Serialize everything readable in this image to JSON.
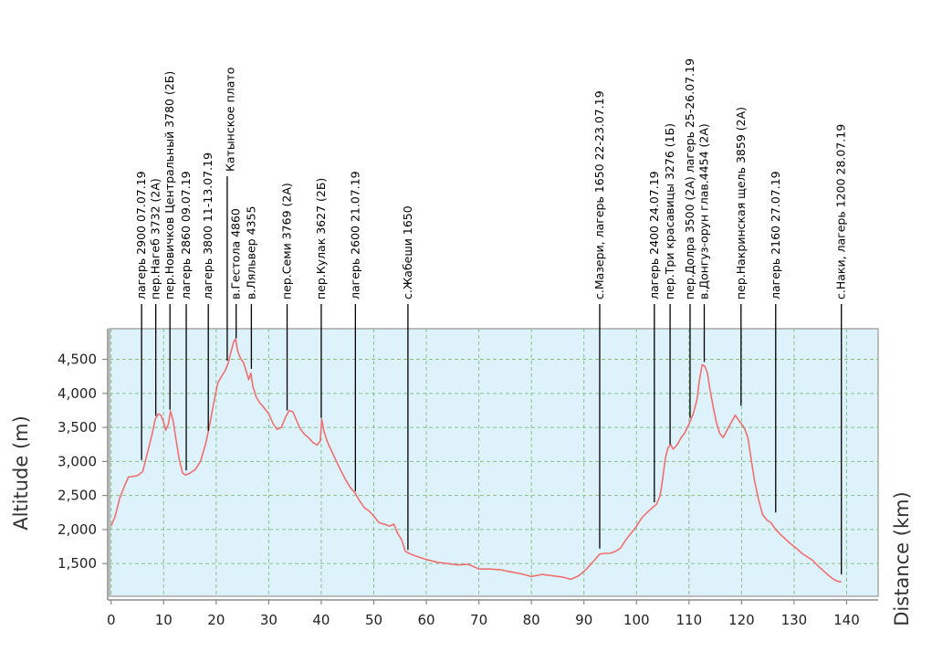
{
  "chart_data": {
    "type": "line",
    "title": "",
    "xlabel": "Distance (km)",
    "ylabel": "Altitude (m)",
    "xlim": [
      -0.3,
      146
    ],
    "ylim": [
      1020,
      4950
    ],
    "x_ticks": [
      0,
      10,
      20,
      30,
      40,
      50,
      60,
      70,
      80,
      90,
      100,
      110,
      120,
      130,
      140
    ],
    "y_ticks": [
      1500,
      2000,
      2500,
      3000,
      3500,
      4000,
      4500
    ],
    "y_tick_labels": [
      "1,500",
      "2,000",
      "2,500",
      "3,000",
      "3,500",
      "4,000",
      "4,500"
    ],
    "grid": true,
    "colors": {
      "line": "#f07070",
      "plot_bg": "#ddf2fb",
      "grid": "#88c288",
      "frame": "#a8a8a8"
    },
    "series": [
      {
        "x": [
          0,
          0.8,
          1.6,
          2.6,
          3.3,
          4,
          5,
          6,
          7,
          7.8,
          8.4,
          9,
          9.5,
          10,
          10.4,
          10.9,
          11.3,
          11.8,
          12.4,
          13,
          13.6,
          14.2,
          15,
          16,
          17,
          18,
          18.8,
          19.5,
          20.3,
          21,
          21.7,
          22.3,
          22.8,
          23.3,
          23.7,
          24.1,
          24.6,
          25.2,
          25.7,
          26.2,
          26.6,
          27,
          27.6,
          28.2,
          29,
          30,
          30.8,
          31.6,
          32.4,
          33.2,
          33.9,
          34.6,
          35.3,
          36,
          36.8,
          37.6,
          38.4,
          39.2,
          39.8,
          40.1,
          40.5,
          41.1,
          41.8,
          42.6,
          43.5,
          44.5,
          45.5,
          46.5,
          47.3,
          48.2,
          49,
          50,
          51,
          52,
          53,
          53.8,
          54.5,
          55.3,
          56,
          57,
          58,
          60,
          62,
          64,
          66,
          68,
          70,
          72,
          74,
          76,
          78,
          80,
          82,
          84,
          86,
          87.5,
          89,
          90.5,
          92,
          93,
          94,
          95,
          96,
          97,
          98,
          99,
          100,
          101,
          102,
          103,
          103.8,
          104.5,
          105,
          105.5,
          106,
          106.5,
          107,
          107.8,
          108.5,
          109.2,
          110,
          110.8,
          111.5,
          112,
          112.5,
          113,
          113.5,
          114,
          114.6,
          115.2,
          115.8,
          116.5,
          117.2,
          118,
          118.8,
          119.5,
          120,
          120.6,
          121.2,
          121.8,
          122.5,
          123.2,
          124,
          124.8,
          125.6,
          126.5,
          127.5,
          128.5,
          129.5,
          130.5,
          131.5,
          132.5,
          133.5,
          134.5,
          135.5,
          136.5,
          137.5,
          138.3,
          139
        ],
        "y": [
          2050,
          2200,
          2450,
          2650,
          2770,
          2780,
          2790,
          2850,
          3150,
          3400,
          3620,
          3700,
          3680,
          3570,
          3460,
          3550,
          3740,
          3600,
          3300,
          3020,
          2830,
          2800,
          2830,
          2880,
          3000,
          3260,
          3550,
          3850,
          4150,
          4250,
          4330,
          4450,
          4600,
          4750,
          4800,
          4620,
          4520,
          4450,
          4330,
          4200,
          4300,
          4100,
          3950,
          3870,
          3800,
          3700,
          3560,
          3470,
          3500,
          3650,
          3750,
          3730,
          3600,
          3480,
          3400,
          3350,
          3280,
          3240,
          3300,
          3620,
          3450,
          3300,
          3180,
          3050,
          2900,
          2750,
          2620,
          2530,
          2420,
          2320,
          2280,
          2200,
          2100,
          2080,
          2050,
          2080,
          1950,
          1850,
          1680,
          1640,
          1610,
          1560,
          1520,
          1500,
          1480,
          1490,
          1420,
          1420,
          1410,
          1380,
          1350,
          1310,
          1340,
          1320,
          1300,
          1270,
          1320,
          1420,
          1550,
          1640,
          1650,
          1650,
          1680,
          1730,
          1850,
          1950,
          2050,
          2170,
          2250,
          2320,
          2370,
          2500,
          2750,
          3050,
          3200,
          3250,
          3180,
          3250,
          3350,
          3420,
          3550,
          3700,
          3900,
          4200,
          4420,
          4400,
          4300,
          4050,
          3800,
          3580,
          3420,
          3350,
          3450,
          3570,
          3680,
          3600,
          3550,
          3480,
          3350,
          3050,
          2700,
          2450,
          2220,
          2140,
          2100,
          2000,
          1920,
          1850,
          1780,
          1720,
          1650,
          1600,
          1550,
          1470,
          1400,
          1330,
          1270,
          1240,
          1230
        ]
      }
    ],
    "annotations": [
      {
        "x": 5.8,
        "y": 3020,
        "label": "лагерь 2900 07.07.19"
      },
      {
        "x": 8.5,
        "y": 3670,
        "label": "пер.Нагеб 3732 (2А)"
      },
      {
        "x": 11.2,
        "y": 3760,
        "label": "пер.Новичков Центральный 3780 (2Б)"
      },
      {
        "x": 14.3,
        "y": 2870,
        "label": "лагерь 2860 09.07.19"
      },
      {
        "x": 18.5,
        "y": 3450,
        "label": "лагерь 3800 11-13.07.19"
      },
      {
        "x": 22.1,
        "y": 4480,
        "label": "Катынское плато",
        "label_x": 22.7,
        "top": true
      },
      {
        "x": 23.8,
        "y": 4810,
        "label": "в.Гестола 4860"
      },
      {
        "x": 26.7,
        "y": 4360,
        "label": "в.Ляльвер 4355"
      },
      {
        "x": 33.5,
        "y": 3750,
        "label": "пер.Семи 3769 (2А)"
      },
      {
        "x": 40.0,
        "y": 3640,
        "label": "пер.Кулак 3627 (2Б)"
      },
      {
        "x": 46.5,
        "y": 2560,
        "label": "лагерь 2600 21.07.19"
      },
      {
        "x": 56.5,
        "y": 1700,
        "label": "с.Жабеши 1650"
      },
      {
        "x": 93.0,
        "y": 1720,
        "label": "с.Мазери, лагерь 1650 22-23.07.19"
      },
      {
        "x": 103.4,
        "y": 2400,
        "label": "лагерь 2400 24.07.19"
      },
      {
        "x": 106.4,
        "y": 3250,
        "label": "пер.Три красавицы 3276 (1Б)"
      },
      {
        "x": 110.2,
        "y": 3640,
        "label": "пер.Долра 3500 (2А) лагерь 25-26.07.19"
      },
      {
        "x": 112.9,
        "y": 4460,
        "label": "в.Донгуз-орун глав.4454 (2А)"
      },
      {
        "x": 119.9,
        "y": 3820,
        "label": "пер.Накринская щель 3859 (2А)"
      },
      {
        "x": 126.5,
        "y": 2250,
        "label": "лагерь 2160 27.07.19"
      },
      {
        "x": 139.0,
        "y": 1340,
        "label": "с.Наки, лагерь 1200 28.07.19"
      }
    ]
  }
}
